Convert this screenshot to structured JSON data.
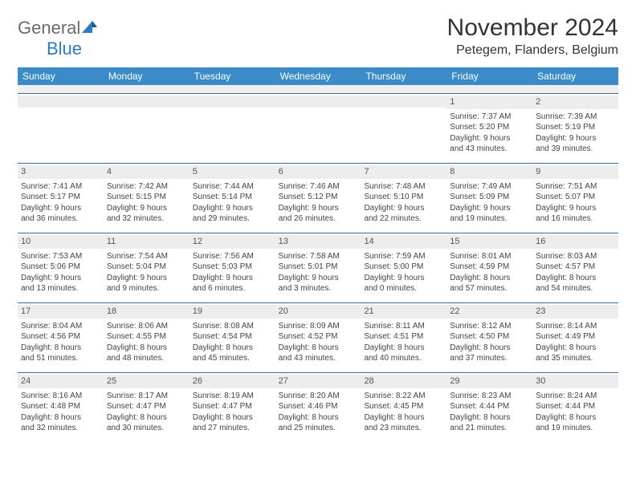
{
  "logo": {
    "part1": "General",
    "part2": "Blue"
  },
  "title": "November 2024",
  "location": "Petegem, Flanders, Belgium",
  "header_bg": "#3b8bc9",
  "rule_color": "#3b6a94",
  "daynames": [
    "Sunday",
    "Monday",
    "Tuesday",
    "Wednesday",
    "Thursday",
    "Friday",
    "Saturday"
  ],
  "weeks": [
    [
      {
        "n": "",
        "sr": "",
        "ss": "",
        "d1": "",
        "d2": ""
      },
      {
        "n": "",
        "sr": "",
        "ss": "",
        "d1": "",
        "d2": ""
      },
      {
        "n": "",
        "sr": "",
        "ss": "",
        "d1": "",
        "d2": ""
      },
      {
        "n": "",
        "sr": "",
        "ss": "",
        "d1": "",
        "d2": ""
      },
      {
        "n": "",
        "sr": "",
        "ss": "",
        "d1": "",
        "d2": ""
      },
      {
        "n": "1",
        "sr": "Sunrise: 7:37 AM",
        "ss": "Sunset: 5:20 PM",
        "d1": "Daylight: 9 hours",
        "d2": "and 43 minutes."
      },
      {
        "n": "2",
        "sr": "Sunrise: 7:39 AM",
        "ss": "Sunset: 5:19 PM",
        "d1": "Daylight: 9 hours",
        "d2": "and 39 minutes."
      }
    ],
    [
      {
        "n": "3",
        "sr": "Sunrise: 7:41 AM",
        "ss": "Sunset: 5:17 PM",
        "d1": "Daylight: 9 hours",
        "d2": "and 36 minutes."
      },
      {
        "n": "4",
        "sr": "Sunrise: 7:42 AM",
        "ss": "Sunset: 5:15 PM",
        "d1": "Daylight: 9 hours",
        "d2": "and 32 minutes."
      },
      {
        "n": "5",
        "sr": "Sunrise: 7:44 AM",
        "ss": "Sunset: 5:14 PM",
        "d1": "Daylight: 9 hours",
        "d2": "and 29 minutes."
      },
      {
        "n": "6",
        "sr": "Sunrise: 7:46 AM",
        "ss": "Sunset: 5:12 PM",
        "d1": "Daylight: 9 hours",
        "d2": "and 26 minutes."
      },
      {
        "n": "7",
        "sr": "Sunrise: 7:48 AM",
        "ss": "Sunset: 5:10 PM",
        "d1": "Daylight: 9 hours",
        "d2": "and 22 minutes."
      },
      {
        "n": "8",
        "sr": "Sunrise: 7:49 AM",
        "ss": "Sunset: 5:09 PM",
        "d1": "Daylight: 9 hours",
        "d2": "and 19 minutes."
      },
      {
        "n": "9",
        "sr": "Sunrise: 7:51 AM",
        "ss": "Sunset: 5:07 PM",
        "d1": "Daylight: 9 hours",
        "d2": "and 16 minutes."
      }
    ],
    [
      {
        "n": "10",
        "sr": "Sunrise: 7:53 AM",
        "ss": "Sunset: 5:06 PM",
        "d1": "Daylight: 9 hours",
        "d2": "and 13 minutes."
      },
      {
        "n": "11",
        "sr": "Sunrise: 7:54 AM",
        "ss": "Sunset: 5:04 PM",
        "d1": "Daylight: 9 hours",
        "d2": "and 9 minutes."
      },
      {
        "n": "12",
        "sr": "Sunrise: 7:56 AM",
        "ss": "Sunset: 5:03 PM",
        "d1": "Daylight: 9 hours",
        "d2": "and 6 minutes."
      },
      {
        "n": "13",
        "sr": "Sunrise: 7:58 AM",
        "ss": "Sunset: 5:01 PM",
        "d1": "Daylight: 9 hours",
        "d2": "and 3 minutes."
      },
      {
        "n": "14",
        "sr": "Sunrise: 7:59 AM",
        "ss": "Sunset: 5:00 PM",
        "d1": "Daylight: 9 hours",
        "d2": "and 0 minutes."
      },
      {
        "n": "15",
        "sr": "Sunrise: 8:01 AM",
        "ss": "Sunset: 4:59 PM",
        "d1": "Daylight: 8 hours",
        "d2": "and 57 minutes."
      },
      {
        "n": "16",
        "sr": "Sunrise: 8:03 AM",
        "ss": "Sunset: 4:57 PM",
        "d1": "Daylight: 8 hours",
        "d2": "and 54 minutes."
      }
    ],
    [
      {
        "n": "17",
        "sr": "Sunrise: 8:04 AM",
        "ss": "Sunset: 4:56 PM",
        "d1": "Daylight: 8 hours",
        "d2": "and 51 minutes."
      },
      {
        "n": "18",
        "sr": "Sunrise: 8:06 AM",
        "ss": "Sunset: 4:55 PM",
        "d1": "Daylight: 8 hours",
        "d2": "and 48 minutes."
      },
      {
        "n": "19",
        "sr": "Sunrise: 8:08 AM",
        "ss": "Sunset: 4:54 PM",
        "d1": "Daylight: 8 hours",
        "d2": "and 45 minutes."
      },
      {
        "n": "20",
        "sr": "Sunrise: 8:09 AM",
        "ss": "Sunset: 4:52 PM",
        "d1": "Daylight: 8 hours",
        "d2": "and 43 minutes."
      },
      {
        "n": "21",
        "sr": "Sunrise: 8:11 AM",
        "ss": "Sunset: 4:51 PM",
        "d1": "Daylight: 8 hours",
        "d2": "and 40 minutes."
      },
      {
        "n": "22",
        "sr": "Sunrise: 8:12 AM",
        "ss": "Sunset: 4:50 PM",
        "d1": "Daylight: 8 hours",
        "d2": "and 37 minutes."
      },
      {
        "n": "23",
        "sr": "Sunrise: 8:14 AM",
        "ss": "Sunset: 4:49 PM",
        "d1": "Daylight: 8 hours",
        "d2": "and 35 minutes."
      }
    ],
    [
      {
        "n": "24",
        "sr": "Sunrise: 8:16 AM",
        "ss": "Sunset: 4:48 PM",
        "d1": "Daylight: 8 hours",
        "d2": "and 32 minutes."
      },
      {
        "n": "25",
        "sr": "Sunrise: 8:17 AM",
        "ss": "Sunset: 4:47 PM",
        "d1": "Daylight: 8 hours",
        "d2": "and 30 minutes."
      },
      {
        "n": "26",
        "sr": "Sunrise: 8:19 AM",
        "ss": "Sunset: 4:47 PM",
        "d1": "Daylight: 8 hours",
        "d2": "and 27 minutes."
      },
      {
        "n": "27",
        "sr": "Sunrise: 8:20 AM",
        "ss": "Sunset: 4:46 PM",
        "d1": "Daylight: 8 hours",
        "d2": "and 25 minutes."
      },
      {
        "n": "28",
        "sr": "Sunrise: 8:22 AM",
        "ss": "Sunset: 4:45 PM",
        "d1": "Daylight: 8 hours",
        "d2": "and 23 minutes."
      },
      {
        "n": "29",
        "sr": "Sunrise: 8:23 AM",
        "ss": "Sunset: 4:44 PM",
        "d1": "Daylight: 8 hours",
        "d2": "and 21 minutes."
      },
      {
        "n": "30",
        "sr": "Sunrise: 8:24 AM",
        "ss": "Sunset: 4:44 PM",
        "d1": "Daylight: 8 hours",
        "d2": "and 19 minutes."
      }
    ]
  ]
}
